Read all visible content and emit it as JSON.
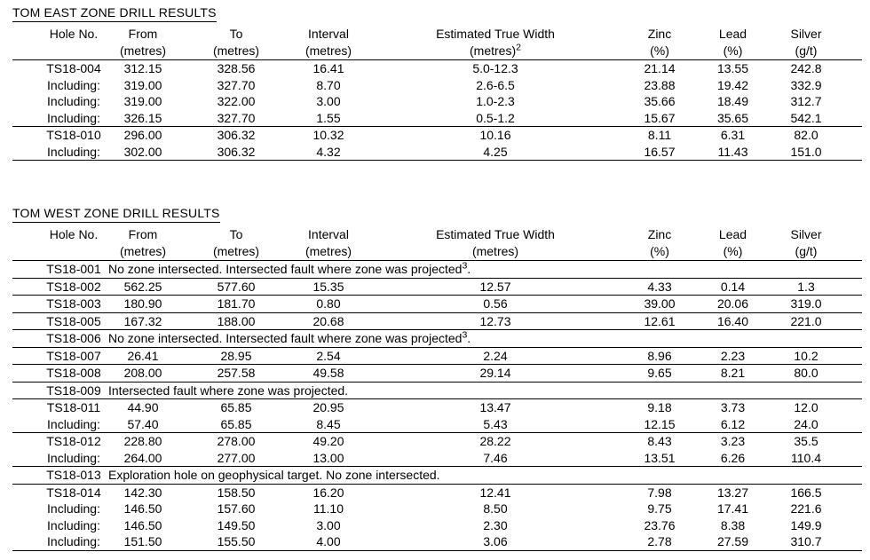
{
  "page": {
    "background_color": "#ffffff",
    "text_color": "#000000",
    "rule_color": "#000000"
  },
  "tables": [
    {
      "title": "TOM EAST ZONE DRILL RESULTS",
      "columns": [
        {
          "label": "Hole No.",
          "unit": ""
        },
        {
          "label": "From",
          "unit": "(metres)"
        },
        {
          "label": "To",
          "unit": "(metres)"
        },
        {
          "label": "Interval",
          "unit": "(metres)"
        },
        {
          "label": "Estimated True Width",
          "unit": "(metres)",
          "unit_sup": "2"
        },
        {
          "label": "Zinc",
          "unit": "(%)"
        },
        {
          "label": "Lead",
          "unit": "(%)"
        },
        {
          "label": "Silver",
          "unit": "(g/t)"
        }
      ],
      "rows": [
        {
          "hole": "TS18-004",
          "group_start": true,
          "values": [
            "312.15",
            "328.56",
            "16.41",
            "5.0-12.3",
            "21.14",
            "13.55",
            "242.8"
          ]
        },
        {
          "hole": "Including:",
          "values": [
            "319.00",
            "327.70",
            "8.70",
            "2.6-6.5",
            "23.88",
            "19.42",
            "332.9"
          ]
        },
        {
          "hole": "Including:",
          "values": [
            "319.00",
            "322.00",
            "3.00",
            "1.0-2.3",
            "35.66",
            "18.49",
            "312.7"
          ]
        },
        {
          "hole": "Including:",
          "values": [
            "326.15",
            "327.70",
            "1.55",
            "0.5-1.2",
            "15.67",
            "35.65",
            "542.1"
          ]
        },
        {
          "hole": "TS18-010",
          "group_start": true,
          "values": [
            "296.00",
            "306.32",
            "10.32",
            "10.16",
            "8.11",
            "6.31",
            "82.0"
          ]
        },
        {
          "hole": "Including:",
          "values": [
            "302.00",
            "306.32",
            "4.32",
            "4.25",
            "16.57",
            "11.43",
            "151.0"
          ]
        }
      ]
    },
    {
      "title": "TOM WEST ZONE DRILL RESULTS",
      "columns": [
        {
          "label": "Hole No.",
          "unit": ""
        },
        {
          "label": "From",
          "unit": "(metres)"
        },
        {
          "label": "To",
          "unit": "(metres)"
        },
        {
          "label": "Interval",
          "unit": "(metres)"
        },
        {
          "label": "Estimated True Width",
          "unit": "(metres)"
        },
        {
          "label": "Zinc",
          "unit": "(%)"
        },
        {
          "label": "Lead",
          "unit": "(%)"
        },
        {
          "label": "Silver",
          "unit": "(g/t)"
        }
      ],
      "rows": [
        {
          "hole": "TS18-001",
          "group_start": true,
          "note": "No zone intersected. Intersected fault where zone was projected",
          "note_sup": "3",
          "note_tail": "."
        },
        {
          "hole": "TS18-002",
          "group_start": true,
          "values": [
            "562.25",
            "577.60",
            "15.35",
            "12.57",
            "4.33",
            "0.14",
            "1.3"
          ]
        },
        {
          "hole": "TS18-003",
          "group_start": true,
          "values": [
            "180.90",
            "181.70",
            "0.80",
            "0.56",
            "39.00",
            "20.06",
            "319.0"
          ]
        },
        {
          "hole": "TS18-005",
          "group_start": true,
          "values": [
            "167.32",
            "188.00",
            "20.68",
            "12.73",
            "12.61",
            "16.40",
            "221.0"
          ]
        },
        {
          "hole": "TS18-006",
          "group_start": true,
          "note": "No zone intersected. Intersected fault where zone was projected",
          "note_sup": "3",
          "note_tail": "."
        },
        {
          "hole": "TS18-007",
          "group_start": true,
          "values": [
            "26.41",
            "28.95",
            "2.54",
            "2.24",
            "8.96",
            "2.23",
            "10.2"
          ]
        },
        {
          "hole": "TS18-008",
          "group_start": true,
          "values": [
            "208.00",
            "257.58",
            "49.58",
            "29.14",
            "9.65",
            "8.21",
            "80.0"
          ]
        },
        {
          "hole": "TS18-009",
          "group_start": true,
          "note": "Intersected fault where zone was projected."
        },
        {
          "hole": "TS18-011",
          "group_start": true,
          "values": [
            "44.90",
            "65.85",
            "20.95",
            "13.47",
            "9.18",
            "3.73",
            "12.0"
          ]
        },
        {
          "hole": "Including:",
          "values": [
            "57.40",
            "65.85",
            "8.45",
            "5.43",
            "12.15",
            "6.12",
            "24.0"
          ]
        },
        {
          "hole": "TS18-012",
          "group_start": true,
          "values": [
            "228.80",
            "278.00",
            "49.20",
            "28.22",
            "8.43",
            "3.23",
            "35.5"
          ]
        },
        {
          "hole": "Including:",
          "values": [
            "264.00",
            "277.00",
            "13.00",
            "7.46",
            "13.51",
            "6.26",
            "110.4"
          ]
        },
        {
          "hole": "TS18-013",
          "group_start": true,
          "note": "Exploration hole on geophysical target. No zone intersected."
        },
        {
          "hole": "TS18-014",
          "group_start": true,
          "values": [
            "142.30",
            "158.50",
            "16.20",
            "12.41",
            "7.98",
            "13.27",
            "166.5"
          ]
        },
        {
          "hole": "Including:",
          "values": [
            "146.50",
            "157.60",
            "11.10",
            "8.50",
            "9.75",
            "17.41",
            "221.6"
          ]
        },
        {
          "hole": "Including:",
          "values": [
            "146.50",
            "149.50",
            "3.00",
            "2.30",
            "23.76",
            "8.38",
            "149.9"
          ]
        },
        {
          "hole": "Including:",
          "values": [
            "151.50",
            "155.50",
            "4.00",
            "3.06",
            "2.78",
            "27.59",
            "310.7"
          ]
        }
      ]
    }
  ]
}
